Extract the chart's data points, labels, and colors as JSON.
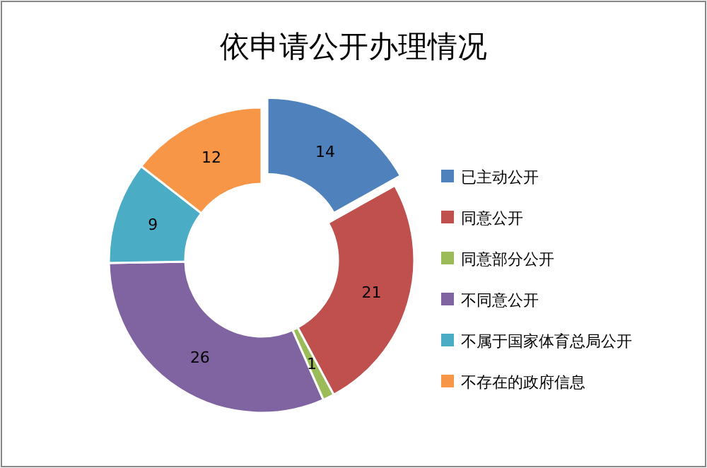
{
  "chart_data": {
    "type": "donut",
    "title": "依申请公开办理情况",
    "categories": [
      "已主动公开",
      "同意公开",
      "同意部分公开",
      "不同意公开",
      "不属于国家体育总局公开",
      "不存在的政府信息"
    ],
    "values": [
      14,
      21,
      1,
      26,
      9,
      12
    ],
    "colors": [
      "#4f81bd",
      "#c0504d",
      "#9bbb59",
      "#8064a2",
      "#4bacc6",
      "#f79646"
    ],
    "data_labels": true,
    "legend": "right"
  }
}
